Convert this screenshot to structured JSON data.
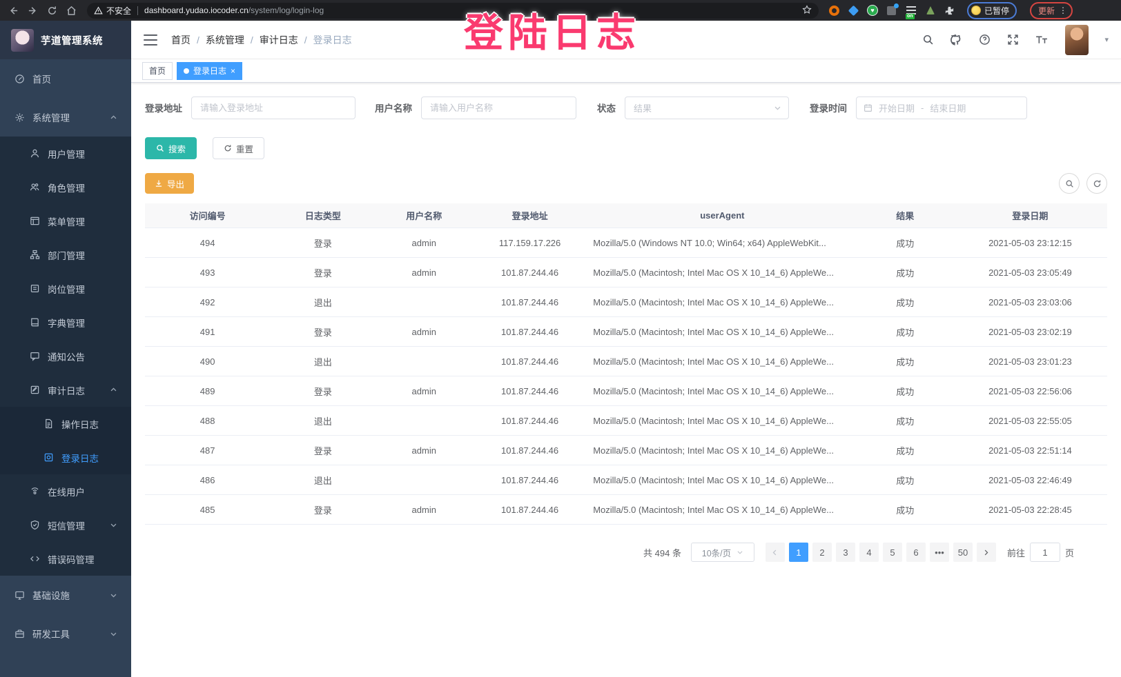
{
  "colors": {
    "accent": "#409eff",
    "search_btn": "#2cb7a9",
    "export_btn": "#efa944",
    "sidebar_bg": "#304156",
    "sidebar_sub_bg": "#1f2d3d",
    "overlay_pink": "#fa3a6f",
    "tag_active": "#409eff"
  },
  "browser": {
    "security_label": "不安全",
    "url_host": "dashboard.yudao.iocoder.cn",
    "url_path": "/system/log/login-log",
    "paused_label": "已暂停",
    "update_label": "更新",
    "extension_badge": "on"
  },
  "overlay": {
    "text": "登陆日志"
  },
  "header": {
    "breadcrumb": [
      "首页",
      "系统管理",
      "审计日志",
      "登录日志"
    ],
    "breadcrumb_separator": "/"
  },
  "tabs": [
    {
      "label": "首页",
      "active": false
    },
    {
      "label": "登录日志",
      "active": true,
      "close": "×"
    }
  ],
  "sidebar": {
    "title": "芋道管理系统",
    "items": [
      {
        "label": "首页",
        "icon": "dashboard-icon",
        "level": 1
      },
      {
        "label": "系统管理",
        "icon": "gear-icon",
        "level": 1,
        "chevron": "up"
      },
      {
        "label": "用户管理",
        "icon": "user-icon",
        "level": 2
      },
      {
        "label": "角色管理",
        "icon": "roles-icon",
        "level": 2
      },
      {
        "label": "菜单管理",
        "icon": "menu-icon",
        "level": 2
      },
      {
        "label": "部门管理",
        "icon": "tree-icon",
        "level": 2
      },
      {
        "label": "岗位管理",
        "icon": "post-icon",
        "level": 2
      },
      {
        "label": "字典管理",
        "icon": "dict-icon",
        "level": 2
      },
      {
        "label": "通知公告",
        "icon": "notice-icon",
        "level": 2
      },
      {
        "label": "审计日志",
        "icon": "log-icon",
        "level": 2,
        "chevron": "up"
      },
      {
        "label": "操作日志",
        "icon": "doc-icon",
        "level": 3
      },
      {
        "label": "登录日志",
        "icon": "login-log-icon",
        "level": 3,
        "active": true
      },
      {
        "label": "在线用户",
        "icon": "online-icon",
        "level": 2
      },
      {
        "label": "短信管理",
        "icon": "sms-icon",
        "level": 2,
        "chevron": "down"
      },
      {
        "label": "错误码管理",
        "icon": "code-icon",
        "level": 2
      },
      {
        "label": "基础设施",
        "icon": "infra-icon",
        "level": 1,
        "chevron": "down"
      },
      {
        "label": "研发工具",
        "icon": "tools-icon",
        "level": 1,
        "chevron": "down"
      }
    ]
  },
  "filters": {
    "address_label": "登录地址",
    "address_placeholder": "请输入登录地址",
    "username_label": "用户名称",
    "username_placeholder": "请输入用户名称",
    "status_label": "状态",
    "status_placeholder": "结果",
    "time_label": "登录时间",
    "start_placeholder": "开始日期",
    "range_separator": "-",
    "end_placeholder": "结束日期"
  },
  "toolbar": {
    "search_label": "搜索",
    "reset_label": "重置",
    "export_label": "导出"
  },
  "table": {
    "headers": [
      "访问编号",
      "日志类型",
      "用户名称",
      "登录地址",
      "userAgent",
      "结果",
      "登录日期"
    ],
    "rows": [
      {
        "id": "494",
        "type": "登录",
        "user": "admin",
        "ip": "117.159.17.226",
        "ua": "Mozilla/5.0 (Windows NT 10.0; Win64; x64) AppleWebKit...",
        "result": "成功",
        "date": "2021-05-03 23:12:15"
      },
      {
        "id": "493",
        "type": "登录",
        "user": "admin",
        "ip": "101.87.244.46",
        "ua": "Mozilla/5.0 (Macintosh; Intel Mac OS X 10_14_6) AppleWe...",
        "result": "成功",
        "date": "2021-05-03 23:05:49"
      },
      {
        "id": "492",
        "type": "退出",
        "user": "",
        "ip": "101.87.244.46",
        "ua": "Mozilla/5.0 (Macintosh; Intel Mac OS X 10_14_6) AppleWe...",
        "result": "成功",
        "date": "2021-05-03 23:03:06"
      },
      {
        "id": "491",
        "type": "登录",
        "user": "admin",
        "ip": "101.87.244.46",
        "ua": "Mozilla/5.0 (Macintosh; Intel Mac OS X 10_14_6) AppleWe...",
        "result": "成功",
        "date": "2021-05-03 23:02:19"
      },
      {
        "id": "490",
        "type": "退出",
        "user": "",
        "ip": "101.87.244.46",
        "ua": "Mozilla/5.0 (Macintosh; Intel Mac OS X 10_14_6) AppleWe...",
        "result": "成功",
        "date": "2021-05-03 23:01:23"
      },
      {
        "id": "489",
        "type": "登录",
        "user": "admin",
        "ip": "101.87.244.46",
        "ua": "Mozilla/5.0 (Macintosh; Intel Mac OS X 10_14_6) AppleWe...",
        "result": "成功",
        "date": "2021-05-03 22:56:06"
      },
      {
        "id": "488",
        "type": "退出",
        "user": "",
        "ip": "101.87.244.46",
        "ua": "Mozilla/5.0 (Macintosh; Intel Mac OS X 10_14_6) AppleWe...",
        "result": "成功",
        "date": "2021-05-03 22:55:05"
      },
      {
        "id": "487",
        "type": "登录",
        "user": "admin",
        "ip": "101.87.244.46",
        "ua": "Mozilla/5.0 (Macintosh; Intel Mac OS X 10_14_6) AppleWe...",
        "result": "成功",
        "date": "2021-05-03 22:51:14"
      },
      {
        "id": "486",
        "type": "退出",
        "user": "",
        "ip": "101.87.244.46",
        "ua": "Mozilla/5.0 (Macintosh; Intel Mac OS X 10_14_6) AppleWe...",
        "result": "成功",
        "date": "2021-05-03 22:46:49"
      },
      {
        "id": "485",
        "type": "登录",
        "user": "admin",
        "ip": "101.87.244.46",
        "ua": "Mozilla/5.0 (Macintosh; Intel Mac OS X 10_14_6) AppleWe...",
        "result": "成功",
        "date": "2021-05-03 22:28:45"
      }
    ]
  },
  "pagination": {
    "total_label": "共 494 条",
    "page_size": "10条/页",
    "pages": [
      "1",
      "2",
      "3",
      "4",
      "5",
      "6",
      "•••",
      "50"
    ],
    "active_page": "1",
    "goto_label": "前往",
    "goto_value": "1",
    "page_unit": "页"
  }
}
